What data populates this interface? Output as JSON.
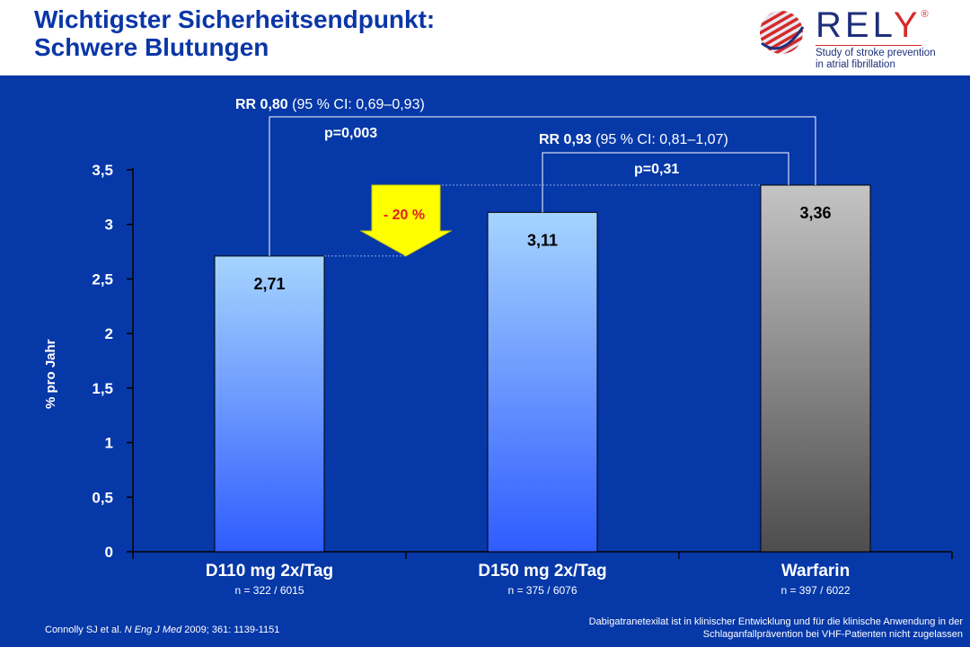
{
  "header": {
    "title_line1": "Wichtigster Sicherheitsendpunkt:",
    "title_line2": "Schwere Blutungen"
  },
  "logo": {
    "wordmark_main": "REL",
    "wordmark_accent": "Y",
    "registered": "®",
    "tagline_line1": "Study of stroke prevention",
    "tagline_line2": "in atrial fibrillation",
    "icon": "striped-globe-icon"
  },
  "chart_data": {
    "type": "bar",
    "title": "",
    "xlabel": "",
    "ylabel": "% pro Jahr",
    "ylim": [
      0,
      3.5
    ],
    "yticks": [
      "0",
      "0,5",
      "1",
      "1,5",
      "2",
      "2,5",
      "3",
      "3,5"
    ],
    "categories": [
      "D110 mg 2x/Tag",
      "D150 mg 2x/Tag",
      "Warfarin"
    ],
    "sample_sizes": [
      "n = 322 / 6015",
      "n = 375 / 6076",
      "n = 397 / 6022"
    ],
    "values": [
      2.71,
      3.11,
      3.36
    ],
    "value_labels": [
      "2,71",
      "3,11",
      "3,36"
    ],
    "bar_colors": [
      "blue-gradient",
      "blue-gradient",
      "gray-gradient"
    ],
    "grid": false,
    "annotations": {
      "rr1_bold": "RR 0,80",
      "rr1_ci": " (95 % CI: 0,69–0,93)",
      "p1": "p=0,003",
      "rr2_bold": "RR 0,93",
      "rr2_ci": " (95 % CI: 0,81–1,07)",
      "p2": "p=0,31",
      "reduction": "- 20 %"
    }
  },
  "colors": {
    "background": "#0638a8",
    "title": "#0a36a6",
    "bar_blue_top": "#a6d4ff",
    "bar_blue_bottom": "#2f5cff",
    "bar_gray_top": "#c4c4c4",
    "bar_gray_bottom": "#4d4d4d",
    "arrow_fill": "#ffff00",
    "reduction_text": "#e02020"
  },
  "footer": {
    "citation_prefix": "Connolly SJ et al. ",
    "citation_journal": "N Eng J Med",
    "citation_suffix": " 2009; 361: 1139-1151",
    "disclaimer_line1": "Dabigatranetexilat ist in klinischer Entwicklung und für die klinische Anwendung in der",
    "disclaimer_line2": "Schlaganfallprävention bei VHF-Patienten nicht zugelassen"
  }
}
